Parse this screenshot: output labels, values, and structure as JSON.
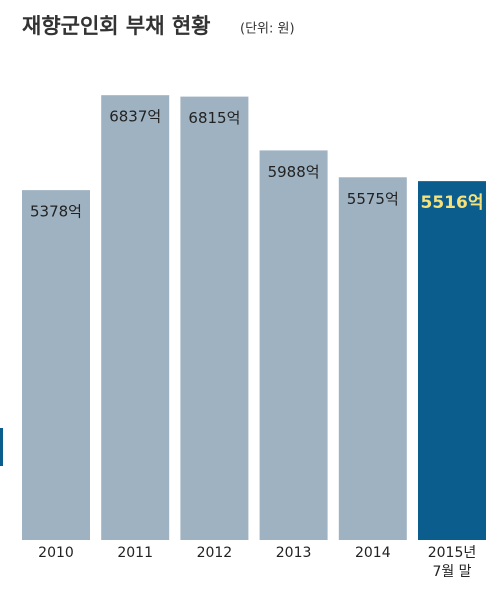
{
  "chart_data": {
    "type": "bar",
    "title": "재향군인회 부채 현황",
    "subtitle": "(단위: 원)",
    "categories": [
      "2010",
      "2011",
      "2012",
      "2013",
      "2014",
      "2015년\n7월 말"
    ],
    "values": [
      5378,
      6837,
      6815,
      5988,
      5575,
      5516
    ],
    "value_labels": [
      "5378억",
      "6837억",
      "6815억",
      "5988억",
      "5575억",
      "5516억"
    ],
    "colors": [
      "#9fb2c2",
      "#9fb2c2",
      "#9fb2c2",
      "#9fb2c2",
      "#9fb2c2",
      "#0b5d8e"
    ],
    "label_colors": [
      "#222222",
      "#222222",
      "#222222",
      "#222222",
      "#222222",
      "#f7e27a"
    ],
    "ylim": [
      0,
      8300
    ]
  }
}
